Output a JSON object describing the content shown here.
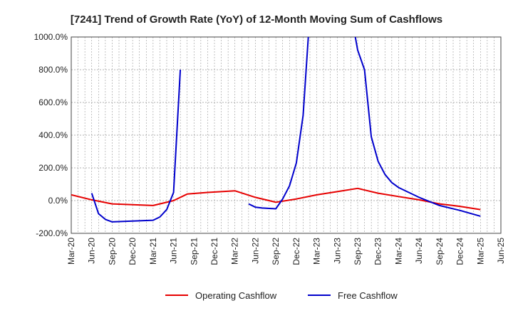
{
  "colors": {
    "operating": "#e60000",
    "free": "#0000cc",
    "grid": "#999999",
    "axis": "#444444"
  },
  "chart_data": {
    "type": "line",
    "title": "[7241]  Trend of Growth Rate (YoY) of 12-Month Moving Sum of Cashflows",
    "xlabel": "",
    "ylabel": "",
    "ylim": [
      -200,
      1000
    ],
    "xlim": [
      "2020-03",
      "2025-06"
    ],
    "grid": true,
    "legend_position": "bottom",
    "x_tick_labels": [
      "Mar-20",
      "Jun-20",
      "Sep-20",
      "Dec-20",
      "Mar-21",
      "Jun-21",
      "Sep-21",
      "Dec-21",
      "Mar-22",
      "Jun-22",
      "Sep-22",
      "Dec-22",
      "Mar-23",
      "Jun-23",
      "Sep-23",
      "Dec-23",
      "Mar-24",
      "Jun-24",
      "Sep-24",
      "Dec-24",
      "Mar-25",
      "Jun-25"
    ],
    "y_tick_labels": [
      "1000.0%",
      "800.0%",
      "600.0%",
      "400.0%",
      "200.0%",
      "0.0%",
      "-200.0%"
    ],
    "series": [
      {
        "name": "Operating Cashflow",
        "segments": [
          [
            [
              "2020-03",
              35
            ],
            [
              "2020-06",
              5
            ],
            [
              "2020-09",
              -20
            ],
            [
              "2020-12",
              -25
            ],
            [
              "2021-03",
              -30
            ],
            [
              "2021-06",
              0
            ],
            [
              "2021-08",
              40
            ],
            [
              "2021-11",
              50
            ],
            [
              "2022-03",
              60
            ],
            [
              "2022-06",
              20
            ],
            [
              "2022-09",
              -10
            ],
            [
              "2022-12",
              10
            ],
            [
              "2023-03",
              35
            ],
            [
              "2023-06",
              55
            ],
            [
              "2023-09",
              75
            ],
            [
              "2023-12",
              45
            ],
            [
              "2024-03",
              25
            ],
            [
              "2024-06",
              5
            ],
            [
              "2024-09",
              -20
            ],
            [
              "2024-12",
              -35
            ],
            [
              "2025-03",
              -55
            ]
          ]
        ]
      },
      {
        "name": "Free Cashflow",
        "segments": [
          [
            [
              "2020-06",
              45
            ],
            [
              "2020-07",
              -80
            ],
            [
              "2020-08",
              -115
            ],
            [
              "2020-09",
              -130
            ],
            [
              "2020-12",
              -125
            ],
            [
              "2021-03",
              -120
            ],
            [
              "2021-04",
              -100
            ],
            [
              "2021-05",
              -55
            ],
            [
              "2021-06",
              50
            ],
            [
              "2021-07",
              800
            ]
          ],
          [
            [
              "2022-05",
              -20
            ],
            [
              "2022-06",
              -40
            ],
            [
              "2022-07",
              -45
            ],
            [
              "2022-09",
              -50
            ],
            [
              "2022-10",
              10
            ],
            [
              "2022-11",
              90
            ],
            [
              "2022-12",
              230
            ],
            [
              "2023-01",
              520
            ],
            [
              "2023-02",
              1150
            ]
          ],
          [
            [
              "2023-08",
              1150
            ],
            [
              "2023-09",
              920
            ],
            [
              "2023-10",
              800
            ],
            [
              "2023-11",
              390
            ],
            [
              "2023-12",
              240
            ],
            [
              "2024-01",
              160
            ],
            [
              "2024-02",
              110
            ],
            [
              "2024-03",
              80
            ],
            [
              "2024-06",
              20
            ],
            [
              "2024-09",
              -30
            ],
            [
              "2024-12",
              -60
            ],
            [
              "2025-03",
              -95
            ]
          ]
        ]
      }
    ]
  }
}
